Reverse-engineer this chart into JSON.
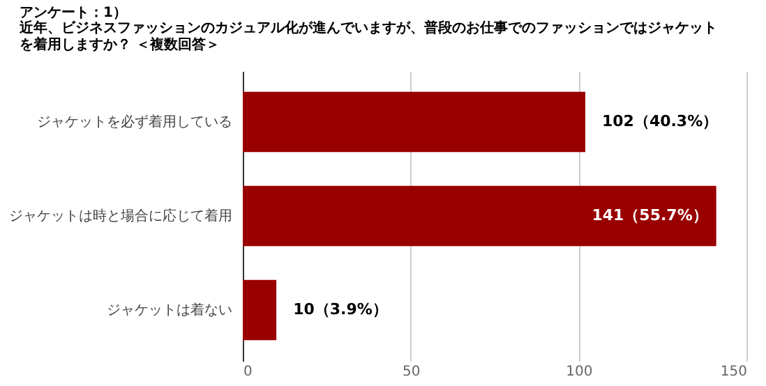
{
  "chart_data": {
    "type": "bar",
    "orientation": "horizontal",
    "title": "アンケート：1）",
    "subtitle": "近年、ビジネスファッションのカジュアル化が進んでいますが、普段のお仕事でのファッションではジャケットを着用しますか？ ＜複数回答＞",
    "categories": [
      "ジャケットを必ず着用している",
      "ジャケットは時と場合に応じて着用",
      "ジャケットは着ない"
    ],
    "values": [
      102,
      141,
      10
    ],
    "value_labels": [
      "102（40.3%）",
      "141（55.7%）",
      "10（3.9%）"
    ],
    "color": "#990000",
    "xlim": [
      0,
      150
    ],
    "xticks": [
      0,
      50,
      100,
      150
    ],
    "grid": "x"
  }
}
